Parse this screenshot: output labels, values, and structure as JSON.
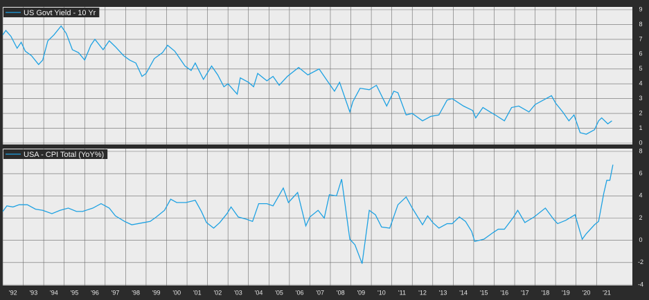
{
  "chart_data": [
    {
      "type": "line",
      "series": [
        {
          "name": "US Govt Yield - 10 Yr",
          "color": "#1da1e2",
          "x": [
            1992.0,
            1992.15,
            1992.4,
            1992.7,
            1992.9,
            1993.1,
            1993.4,
            1993.75,
            1993.95,
            1994.2,
            1994.5,
            1994.85,
            1995.1,
            1995.4,
            1995.7,
            1996.0,
            1996.3,
            1996.5,
            1996.9,
            1997.2,
            1997.5,
            1997.9,
            1998.2,
            1998.5,
            1998.8,
            1999.0,
            1999.4,
            1999.8,
            2000.05,
            2000.4,
            2000.9,
            2001.2,
            2001.4,
            2001.8,
            2002.2,
            2002.5,
            2002.8,
            2003.0,
            2003.45,
            2003.6,
            2004.0,
            2004.25,
            2004.45,
            2004.9,
            2005.2,
            2005.5,
            2005.9,
            2006.45,
            2006.9,
            2007.45,
            2007.9,
            2008.2,
            2008.45,
            2008.95,
            2009.1,
            2009.45,
            2009.9,
            2010.25,
            2010.75,
            2011.1,
            2011.3,
            2011.7,
            2012.0,
            2012.5,
            2012.9,
            2013.3,
            2013.7,
            2013.95,
            2014.5,
            2014.95,
            2015.1,
            2015.45,
            2015.8,
            2016.05,
            2016.5,
            2016.85,
            2017.2,
            2017.7,
            2018.0,
            2018.4,
            2018.8,
            2019.0,
            2019.35,
            2019.65,
            2019.9,
            2020.2,
            2020.5,
            2020.9,
            2021.1,
            2021.25,
            2021.55,
            2021.75
          ],
          "values": [
            7.3,
            7.6,
            7.2,
            6.4,
            6.8,
            6.2,
            5.9,
            5.3,
            5.6,
            6.9,
            7.3,
            7.9,
            7.4,
            6.3,
            6.1,
            5.6,
            6.6,
            7.0,
            6.3,
            6.9,
            6.5,
            5.9,
            5.6,
            5.4,
            4.5,
            4.7,
            5.7,
            6.1,
            6.6,
            6.2,
            5.2,
            4.9,
            5.4,
            4.3,
            5.2,
            4.6,
            3.8,
            4.0,
            3.3,
            4.4,
            4.1,
            3.8,
            4.7,
            4.2,
            4.5,
            3.9,
            4.5,
            5.1,
            4.6,
            5.0,
            4.1,
            3.5,
            4.1,
            2.1,
            2.8,
            3.7,
            3.6,
            3.9,
            2.5,
            3.5,
            3.4,
            1.9,
            2.0,
            1.5,
            1.8,
            1.9,
            2.9,
            3.0,
            2.5,
            2.2,
            1.7,
            2.4,
            2.1,
            1.9,
            1.5,
            2.4,
            2.5,
            2.1,
            2.6,
            2.9,
            3.2,
            2.7,
            2.1,
            1.5,
            1.9,
            0.7,
            0.6,
            0.9,
            1.5,
            1.7,
            1.3,
            1.5
          ]
        }
      ],
      "xlim": [
        1992,
        2022.75
      ],
      "ylim": [
        0,
        9
      ],
      "yticks": [
        0,
        1,
        2,
        3,
        4,
        5,
        6,
        7,
        8,
        9
      ],
      "grid": true
    },
    {
      "type": "line",
      "series": [
        {
          "name": "USA - CPI Total (YoY%)",
          "color": "#1da1e2",
          "x": [
            1992.0,
            1992.2,
            1992.5,
            1992.8,
            1993.2,
            1993.6,
            1993.95,
            1994.4,
            1994.8,
            1995.2,
            1995.6,
            1995.9,
            1996.4,
            1996.8,
            1997.2,
            1997.5,
            1997.95,
            1998.3,
            1998.9,
            1999.2,
            1999.5,
            1999.9,
            2000.2,
            2000.5,
            2000.95,
            2001.4,
            2001.7,
            2001.95,
            2002.3,
            2002.6,
            2002.95,
            2003.15,
            2003.5,
            2003.9,
            2004.2,
            2004.5,
            2004.9,
            2005.2,
            2005.7,
            2005.95,
            2006.4,
            2006.8,
            2007.0,
            2007.4,
            2007.7,
            2007.95,
            2008.3,
            2008.55,
            2008.95,
            2009.2,
            2009.55,
            2009.9,
            2010.2,
            2010.5,
            2010.9,
            2011.3,
            2011.7,
            2012.0,
            2012.5,
            2012.75,
            2013.0,
            2013.3,
            2013.7,
            2013.95,
            2014.3,
            2014.6,
            2014.9,
            2015.05,
            2015.5,
            2015.95,
            2016.2,
            2016.5,
            2016.95,
            2017.15,
            2017.5,
            2017.95,
            2018.5,
            2018.9,
            2019.1,
            2019.5,
            2019.95,
            2020.3,
            2020.5,
            2020.9,
            2021.1,
            2021.35,
            2021.5,
            2021.65,
            2021.8
          ],
          "values": [
            2.6,
            3.1,
            3.0,
            3.2,
            3.2,
            2.8,
            2.7,
            2.4,
            2.7,
            2.9,
            2.6,
            2.6,
            2.9,
            3.3,
            2.9,
            2.2,
            1.7,
            1.4,
            1.6,
            1.7,
            2.1,
            2.7,
            3.7,
            3.4,
            3.4,
            3.6,
            2.6,
            1.6,
            1.1,
            1.6,
            2.4,
            3.0,
            2.1,
            1.9,
            1.7,
            3.3,
            3.3,
            3.1,
            4.7,
            3.4,
            4.3,
            1.3,
            2.1,
            2.7,
            2.0,
            4.1,
            4.0,
            5.5,
            0.1,
            -0.4,
            -2.1,
            2.7,
            2.3,
            1.2,
            1.1,
            3.2,
            3.9,
            2.9,
            1.4,
            2.2,
            1.6,
            1.1,
            1.5,
            1.5,
            2.1,
            1.7,
            0.8,
            -0.1,
            0.1,
            0.7,
            1.0,
            1.0,
            2.1,
            2.7,
            1.6,
            2.1,
            2.9,
            1.9,
            1.5,
            1.8,
            2.3,
            0.1,
            0.6,
            1.4,
            1.7,
            4.2,
            5.4,
            5.4,
            6.8
          ]
        }
      ],
      "xlim": [
        1992,
        2022.75
      ],
      "ylim": [
        -4,
        8
      ],
      "yticks": [
        -4,
        -2,
        0,
        2,
        4,
        6,
        8
      ],
      "grid": true,
      "xticks": [
        {
          "value": 1992,
          "label": "'92"
        },
        {
          "value": 1993,
          "label": "'93"
        },
        {
          "value": 1994,
          "label": "'94"
        },
        {
          "value": 1995,
          "label": "'95"
        },
        {
          "value": 1996,
          "label": "'96"
        },
        {
          "value": 1997,
          "label": "'97"
        },
        {
          "value": 1998,
          "label": "'98"
        },
        {
          "value": 1999,
          "label": "'99"
        },
        {
          "value": 2000,
          "label": "'00"
        },
        {
          "value": 2001,
          "label": "'01"
        },
        {
          "value": 2002,
          "label": "'02"
        },
        {
          "value": 2003,
          "label": "'03"
        },
        {
          "value": 2004,
          "label": "'04"
        },
        {
          "value": 2005,
          "label": "'05"
        },
        {
          "value": 2006,
          "label": "'06"
        },
        {
          "value": 2007,
          "label": "'07"
        },
        {
          "value": 2008,
          "label": "'08"
        },
        {
          "value": 2009,
          "label": "'09"
        },
        {
          "value": 2010,
          "label": "'10"
        },
        {
          "value": 2011,
          "label": "'11"
        },
        {
          "value": 2012,
          "label": "'12"
        },
        {
          "value": 2013,
          "label": "'13"
        },
        {
          "value": 2014,
          "label": "'14"
        },
        {
          "value": 2015,
          "label": "'15"
        },
        {
          "value": 2016,
          "label": "'16"
        },
        {
          "value": 2017,
          "label": "'17"
        },
        {
          "value": 2018,
          "label": "'18"
        },
        {
          "value": 2019,
          "label": "'19"
        },
        {
          "value": 2020,
          "label": "'20"
        },
        {
          "value": 2021,
          "label": "'21"
        }
      ]
    }
  ]
}
